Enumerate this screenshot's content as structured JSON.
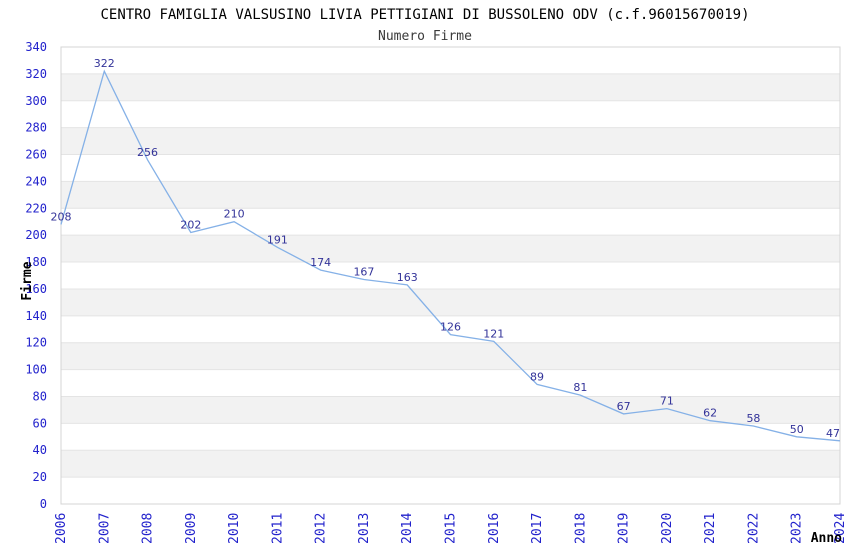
{
  "chart_data": {
    "type": "line",
    "title": "CENTRO FAMIGLIA VALSUSINO LIVIA PETTIGIANI DI BUSSOLENO ODV (c.f.96015670019)",
    "subtitle": "Numero Firme",
    "xlabel": "Anno",
    "ylabel": "Firme",
    "categories": [
      "2006",
      "2007",
      "2008",
      "2009",
      "2010",
      "2011",
      "2012",
      "2013",
      "2014",
      "2015",
      "2016",
      "2017",
      "2018",
      "2019",
      "2020",
      "2021",
      "2022",
      "2023",
      "2024"
    ],
    "values": [
      208,
      322,
      256,
      202,
      210,
      191,
      174,
      167,
      163,
      126,
      121,
      89,
      81,
      67,
      71,
      62,
      58,
      50,
      47
    ],
    "ylim": [
      0,
      340
    ],
    "ytick_step": 20,
    "grid": true,
    "legend_position": "none",
    "point_labels_shown": true,
    "x_tick_rotation_degrees": -90
  },
  "colors": {
    "line": "#85b1e7",
    "point_label": "#333399",
    "tick_label": "#2222cc",
    "title": "#000000",
    "subtitle": "#3a3a3a",
    "axis_title": "#000000",
    "band": "#f2f2f2",
    "gridline": "#e4e4e4",
    "plot_border": "#d4d4d4",
    "background": "#ffffff"
  }
}
